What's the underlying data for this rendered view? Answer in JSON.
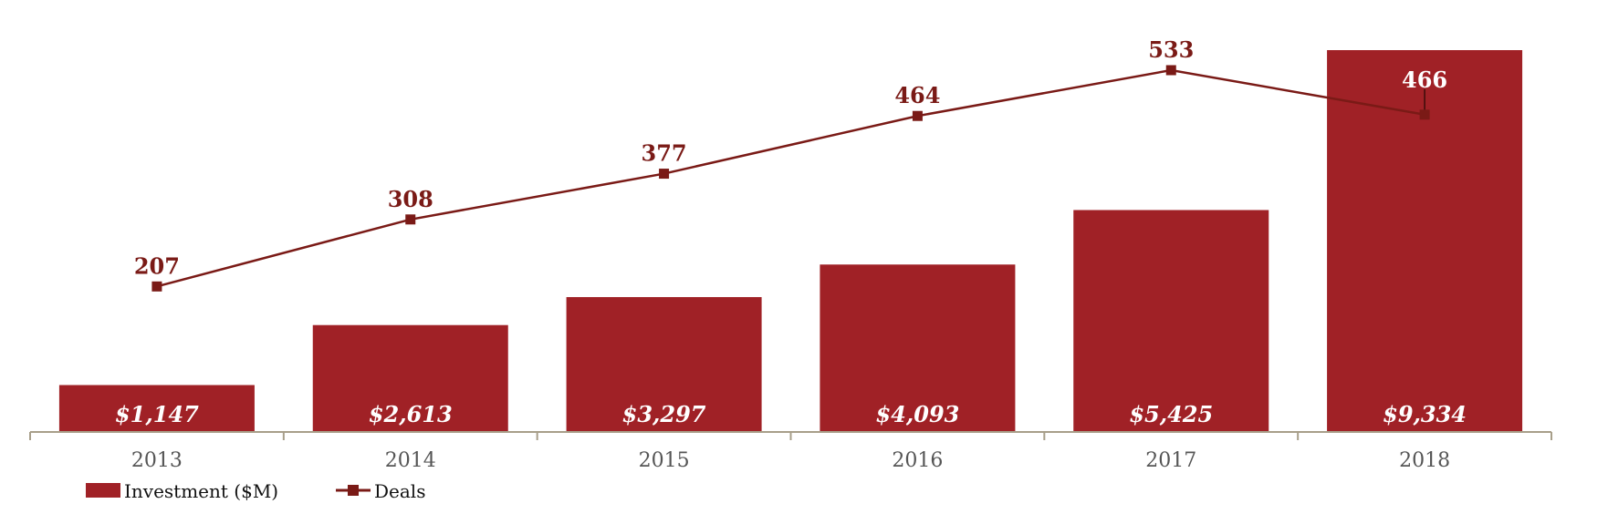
{
  "chart_data": {
    "type": "bar",
    "categories": [
      "2013",
      "2014",
      "2015",
      "2016",
      "2017",
      "2018"
    ],
    "series": [
      {
        "name": "Investment ($M)",
        "type": "bar",
        "values": [
          1147,
          2613,
          3297,
          4093,
          5425,
          9334
        ],
        "labels": [
          "$1,147",
          "$2,613",
          "$3,297",
          "$4,093",
          "$5,425",
          "$9,334"
        ],
        "color": "#a02126"
      },
      {
        "name": "Deals",
        "type": "line",
        "values": [
          207,
          308,
          377,
          464,
          533,
          466
        ],
        "labels": [
          "207",
          "308",
          "377",
          "464",
          "533",
          "466"
        ],
        "color": "#7a1a16"
      }
    ],
    "title": "",
    "xlabel": "",
    "ylabel": "",
    "ylim_bar": [
      0,
      9334
    ],
    "ylim_line": [
      0,
      533
    ],
    "grid": false,
    "legend_position": "bottom-left"
  }
}
